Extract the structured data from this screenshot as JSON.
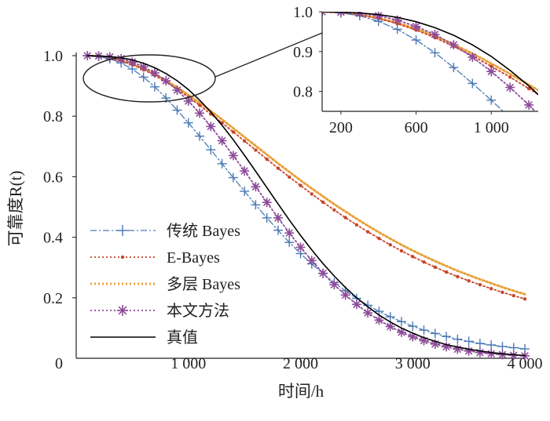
{
  "chart_data": [
    {
      "id": "main",
      "type": "line",
      "xlabel": "时间/h",
      "ylabel": "可靠度R(t)",
      "xlim": [
        0,
        4000
      ],
      "ylim": [
        0,
        1.0
      ],
      "x_ticks": [
        0,
        1000,
        2000,
        3000,
        4000
      ],
      "x_tick_labels": [
        "0",
        "1 000",
        "2 000",
        "3 000",
        "4 000"
      ],
      "y_ticks": [
        0.2,
        0.4,
        0.6,
        0.8,
        1.0
      ],
      "y_tick_labels": [
        "0.2",
        "0.4",
        "0.6",
        "0.8",
        "1.0"
      ],
      "grid": false,
      "legend_position": "bottom-left",
      "series": [
        {
          "name": "传统 Bayes",
          "color": "#4a7ab5",
          "style": "dashdot",
          "marker": "plus",
          "x": [
            100,
            200,
            300,
            400,
            500,
            600,
            700,
            800,
            900,
            1000,
            1100,
            1200,
            1300,
            1400,
            1500,
            1600,
            1700,
            1800,
            1900,
            2000,
            2100,
            2200,
            2300,
            2400,
            2500,
            2600,
            2700,
            2800,
            2900,
            3000,
            3100,
            3200,
            3300,
            3400,
            3500,
            3600,
            3700,
            3800,
            3900,
            4000
          ],
          "values": [
            1.0,
            0.997,
            0.99,
            0.976,
            0.956,
            0.929,
            0.897,
            0.86,
            0.82,
            0.778,
            0.734,
            0.689,
            0.643,
            0.597,
            0.552,
            0.507,
            0.464,
            0.423,
            0.383,
            0.346,
            0.312,
            0.28,
            0.25,
            0.223,
            0.198,
            0.175,
            0.155,
            0.137,
            0.121,
            0.106,
            0.093,
            0.082,
            0.072,
            0.063,
            0.056,
            0.049,
            0.044,
            0.039,
            0.035,
            0.031
          ]
        },
        {
          "name": "E-Bayes",
          "color": "#c8442a",
          "style": "dotted",
          "marker": "dot",
          "x": [
            100,
            200,
            300,
            400,
            500,
            600,
            700,
            800,
            900,
            1000,
            1100,
            1200,
            1300,
            1400,
            1500,
            1600,
            1700,
            1800,
            1900,
            2000,
            2100,
            2200,
            2300,
            2400,
            2500,
            2600,
            2700,
            2800,
            2900,
            3000,
            3100,
            3200,
            3300,
            3400,
            3500,
            3600,
            3700,
            3800,
            3900,
            4000
          ],
          "values": [
            1.0,
            0.998,
            0.992,
            0.983,
            0.97,
            0.954,
            0.935,
            0.913,
            0.889,
            0.863,
            0.836,
            0.807,
            0.778,
            0.748,
            0.718,
            0.688,
            0.658,
            0.628,
            0.599,
            0.571,
            0.543,
            0.516,
            0.49,
            0.465,
            0.441,
            0.418,
            0.396,
            0.375,
            0.355,
            0.336,
            0.318,
            0.301,
            0.285,
            0.27,
            0.256,
            0.243,
            0.23,
            0.218,
            0.207,
            0.196
          ]
        },
        {
          "name": "多层 Bayes",
          "color": "#e8a13c",
          "style": "dotted",
          "marker": "none",
          "x": [
            100,
            200,
            300,
            400,
            500,
            600,
            700,
            800,
            900,
            1000,
            1100,
            1200,
            1300,
            1400,
            1500,
            1600,
            1700,
            1800,
            1900,
            2000,
            2100,
            2200,
            2300,
            2400,
            2500,
            2600,
            2700,
            2800,
            2900,
            3000,
            3100,
            3200,
            3300,
            3400,
            3500,
            3600,
            3700,
            3800,
            3900,
            4000
          ],
          "values": [
            1.0,
            0.998,
            0.993,
            0.984,
            0.972,
            0.957,
            0.939,
            0.918,
            0.895,
            0.87,
            0.844,
            0.817,
            0.789,
            0.76,
            0.731,
            0.702,
            0.673,
            0.644,
            0.616,
            0.588,
            0.561,
            0.535,
            0.509,
            0.485,
            0.461,
            0.438,
            0.416,
            0.395,
            0.375,
            0.356,
            0.338,
            0.321,
            0.305,
            0.289,
            0.275,
            0.261,
            0.248,
            0.235,
            0.223,
            0.212
          ]
        },
        {
          "name": "本文方法",
          "color": "#8e4c9a",
          "style": "dotted",
          "marker": "star",
          "x": [
            100,
            200,
            300,
            400,
            500,
            600,
            700,
            800,
            900,
            1000,
            1100,
            1200,
            1300,
            1400,
            1500,
            1600,
            1700,
            1800,
            1900,
            2000,
            2100,
            2200,
            2300,
            2400,
            2500,
            2600,
            2700,
            2800,
            2900,
            3000,
            3100,
            3200,
            3300,
            3400,
            3500,
            3600,
            3700,
            3800,
            3900,
            4000
          ],
          "values": [
            1.0,
            0.999,
            0.996,
            0.99,
            0.979,
            0.963,
            0.943,
            0.917,
            0.886,
            0.85,
            0.81,
            0.766,
            0.719,
            0.67,
            0.619,
            0.567,
            0.515,
            0.464,
            0.414,
            0.367,
            0.323,
            0.281,
            0.243,
            0.209,
            0.178,
            0.15,
            0.126,
            0.105,
            0.086,
            0.071,
            0.058,
            0.047,
            0.038,
            0.03,
            0.024,
            0.019,
            0.015,
            0.012,
            0.01,
            0.008
          ]
        },
        {
          "name": "真值",
          "color": "#000000",
          "style": "solid",
          "marker": "none",
          "x": [
            100,
            200,
            300,
            400,
            500,
            600,
            700,
            800,
            900,
            1000,
            1100,
            1200,
            1300,
            1400,
            1500,
            1600,
            1700,
            1800,
            1900,
            2000,
            2100,
            2200,
            2300,
            2400,
            2500,
            2600,
            2700,
            2800,
            2900,
            3000,
            3100,
            3200,
            3300,
            3400,
            3500,
            3600,
            3700,
            3800,
            3900,
            4000
          ],
          "values": [
            1.0,
            0.999,
            0.997,
            0.993,
            0.986,
            0.975,
            0.96,
            0.941,
            0.917,
            0.888,
            0.853,
            0.814,
            0.77,
            0.722,
            0.671,
            0.618,
            0.564,
            0.51,
            0.457,
            0.406,
            0.358,
            0.313,
            0.272,
            0.234,
            0.2,
            0.17,
            0.143,
            0.12,
            0.1,
            0.083,
            0.068,
            0.056,
            0.045,
            0.037,
            0.03,
            0.024,
            0.019,
            0.015,
            0.012,
            0.009
          ]
        }
      ]
    },
    {
      "id": "inset",
      "type": "line",
      "xlim": [
        100,
        1250
      ],
      "ylim": [
        0.75,
        1.0
      ],
      "x_ticks": [
        200,
        600,
        1000
      ],
      "x_tick_labels": [
        "200",
        "600",
        "1 000"
      ],
      "y_ticks": [
        0.8,
        0.9,
        1.0
      ],
      "y_tick_labels": [
        "0.8",
        "0.9",
        "1.0"
      ],
      "grid": false,
      "zoom_of": "main",
      "zoom_region_x": [
        100,
        1250
      ],
      "zoom_region_y": [
        0.8,
        1.0
      ]
    }
  ]
}
